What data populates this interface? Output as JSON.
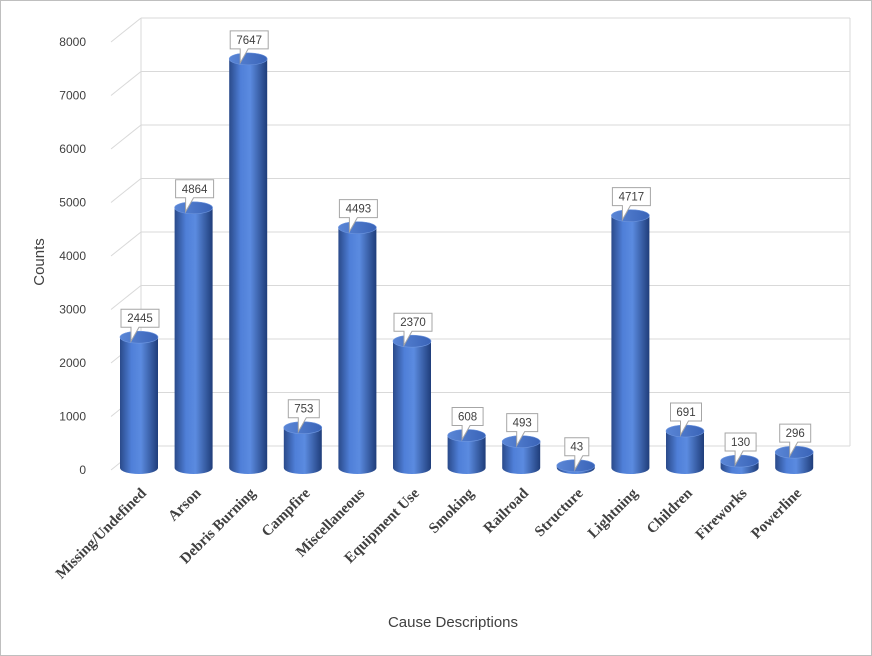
{
  "chart_data": {
    "type": "bar",
    "style": "3d-cylinder",
    "title": "",
    "xlabel": "Cause Descriptions",
    "ylabel": "Counts",
    "ylim": [
      0,
      8000
    ],
    "yticks": [
      0,
      1000,
      2000,
      3000,
      4000,
      5000,
      6000,
      7000,
      8000
    ],
    "grid": true,
    "legend": "none",
    "bar_color": "#4472C4",
    "categories": [
      "Missing/Undefined",
      "Arson",
      "Debris Burning",
      "Campfire",
      "Miscellaneous",
      "Equipment Use",
      "Smoking",
      "Railroad",
      "Structure",
      "Lightning",
      "Children",
      "Fireworks",
      "Powerline"
    ],
    "values": [
      2445,
      4864,
      7647,
      753,
      4493,
      2370,
      608,
      493,
      43,
      4717,
      691,
      130,
      296
    ],
    "data_labels": [
      "2445",
      "4864",
      "7647",
      "753",
      "4493",
      "2370",
      "608",
      "493",
      "43",
      "4717",
      "691",
      "130",
      "296"
    ]
  }
}
